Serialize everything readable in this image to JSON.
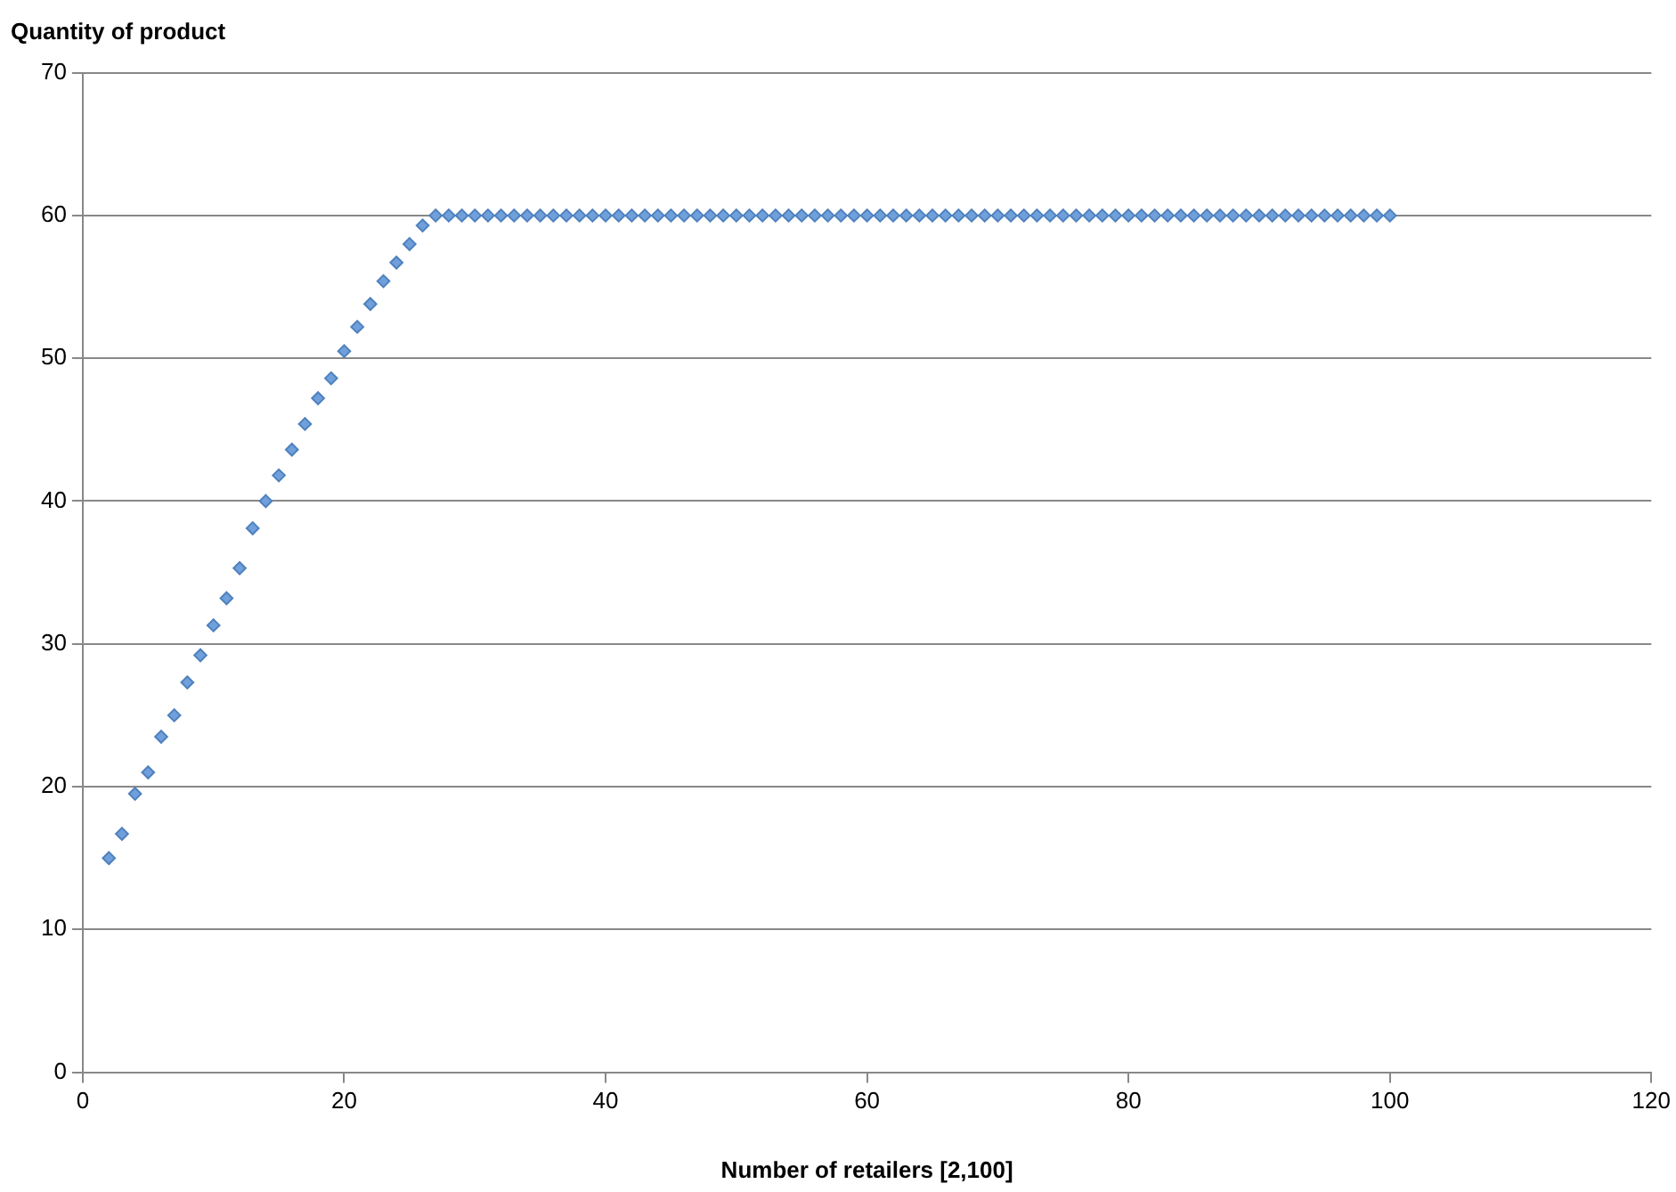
{
  "chart_data": {
    "type": "scatter",
    "xlabel": "Number of retailers [2,100]",
    "ylabel": "Quantity of product",
    "x": [
      2,
      3,
      4,
      5,
      6,
      7,
      8,
      9,
      10,
      11,
      12,
      13,
      14,
      15,
      16,
      17,
      18,
      19,
      20,
      21,
      22,
      23,
      24,
      25,
      26,
      27,
      28,
      29,
      30,
      31,
      32,
      33,
      34,
      35,
      36,
      37,
      38,
      39,
      40,
      41,
      42,
      43,
      44,
      45,
      46,
      47,
      48,
      49,
      50,
      51,
      52,
      53,
      54,
      55,
      56,
      57,
      58,
      59,
      60,
      61,
      62,
      63,
      64,
      65,
      66,
      67,
      68,
      69,
      70,
      71,
      72,
      73,
      74,
      75,
      76,
      77,
      78,
      79,
      80,
      81,
      82,
      83,
      84,
      85,
      86,
      87,
      88,
      89,
      90,
      91,
      92,
      93,
      94,
      95,
      96,
      97,
      98,
      99,
      100
    ],
    "values": [
      15,
      16.7,
      19.5,
      21,
      23.5,
      25,
      27.3,
      29.2,
      31.3,
      33.2,
      35.3,
      38.1,
      40,
      41.8,
      43.6,
      45.4,
      47.2,
      48.6,
      50.5,
      52.2,
      53.8,
      55.4,
      56.7,
      58,
      59.3,
      60,
      60,
      60,
      60,
      60,
      60,
      60,
      60,
      60,
      60,
      60,
      60,
      60,
      60,
      60,
      60,
      60,
      60,
      60,
      60,
      60,
      60,
      60,
      60,
      60,
      60,
      60,
      60,
      60,
      60,
      60,
      60,
      60,
      60,
      60,
      60,
      60,
      60,
      60,
      60,
      60,
      60,
      60,
      60,
      60,
      60,
      60,
      60,
      60,
      60,
      60,
      60,
      60,
      60,
      60,
      60,
      60,
      60,
      60,
      60,
      60,
      60,
      60,
      60,
      60,
      60,
      60,
      60,
      60,
      60,
      60,
      60,
      60,
      60
    ],
    "color": "#6fa0dc",
    "marker": "diamond",
    "grid": "y",
    "legend": false,
    "xlim": [
      0,
      120
    ],
    "xticks": [
      0,
      20,
      40,
      60,
      80,
      100,
      120
    ],
    "ylim": [
      0,
      70
    ],
    "yticks": [
      0,
      10,
      20,
      30,
      40,
      50,
      60,
      70
    ]
  }
}
